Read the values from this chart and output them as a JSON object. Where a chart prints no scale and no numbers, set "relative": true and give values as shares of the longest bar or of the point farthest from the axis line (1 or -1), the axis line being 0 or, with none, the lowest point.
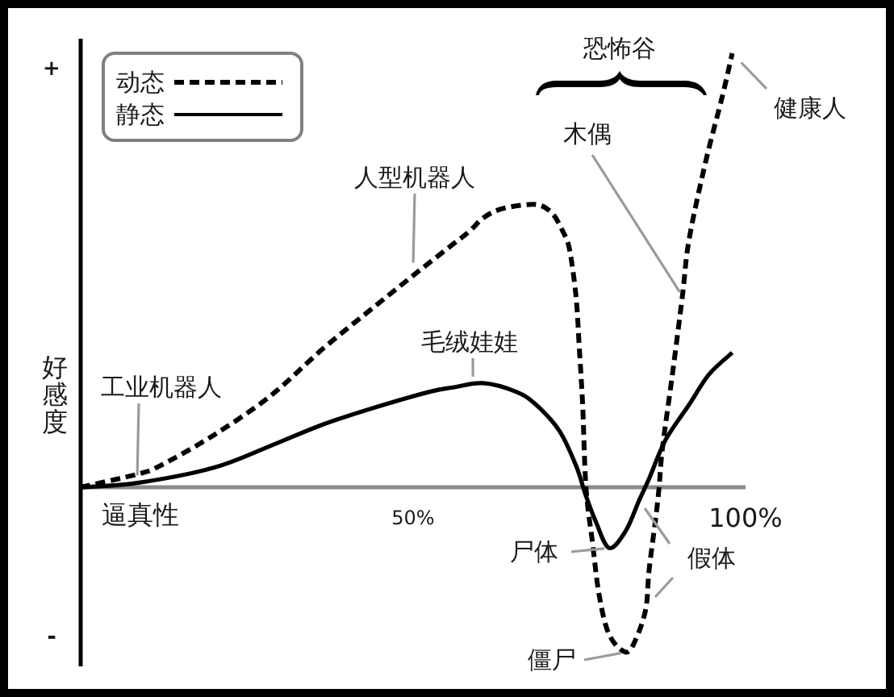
{
  "chart_data": {
    "type": "line",
    "relative": true,
    "xlabel": "逼真性",
    "ylabel": "好感度",
    "xlim": [
      0,
      100
    ],
    "xticks": [
      {
        "value": 50,
        "label": "50%"
      },
      {
        "value": 100,
        "label": "100%"
      }
    ],
    "legend": "top left",
    "series": [
      {
        "name": "动态",
        "color": "#000000",
        "line_style": "dashed",
        "x": [
          0,
          8.5,
          12,
          20,
          28.5,
          36.5,
          44.5,
          51,
          56,
          58.5,
          60.5,
          63,
          66.5,
          69,
          71,
          72.5,
          73.5,
          74.5,
          75,
          75.5,
          76,
          77,
          78,
          79.5,
          82,
          83.5,
          85,
          85.5,
          86.5,
          87,
          87.5,
          89,
          90.5,
          91.5,
          94,
          96.5,
          98
        ],
        "values": [
          0,
          0.03,
          0.05,
          0.12,
          0.21,
          0.32,
          0.42,
          0.5,
          0.56,
          0.59,
          0.62,
          0.64,
          0.65,
          0.65,
          0.63,
          0.59,
          0.55,
          0.44,
          0.32,
          0.19,
          0,
          -0.13,
          -0.25,
          -0.34,
          -0.38,
          -0.35,
          -0.28,
          -0.19,
          -0.07,
          0,
          0.09,
          0.26,
          0.44,
          0.57,
          0.75,
          0.9,
          1
        ]
      },
      {
        "name": "静态",
        "color": "#000000",
        "line_style": "solid",
        "x": [
          0,
          8.5,
          20,
          28.5,
          36.5,
          44.5,
          52.5,
          56,
          60.5,
          65.5,
          68.5,
          72,
          74.5,
          76,
          77.5,
          79.5,
          82,
          84,
          85.5,
          88,
          91.5,
          94.5,
          98
        ],
        "values": [
          0,
          0.01,
          0.045,
          0.095,
          0.145,
          0.185,
          0.22,
          0.23,
          0.24,
          0.22,
          0.19,
          0.13,
          0.05,
          -0.02,
          -0.08,
          -0.14,
          -0.1,
          -0.03,
          0.02,
          0.11,
          0.19,
          0.26,
          0.31
        ]
      }
    ],
    "annotations": [
      "+",
      "-",
      {
        "text": "工业机器人",
        "x": 8.5,
        "y": 0.02
      },
      {
        "text": "人型机器人",
        "x": 50,
        "y": 0.51
      },
      {
        "text": "毛绒娃娃",
        "x": 59,
        "y": 0.24
      },
      "恐怖谷",
      {
        "text": "木偶",
        "x": 90.5,
        "y": 0.44
      },
      {
        "text": "健康人",
        "x": 98,
        "y": 1
      },
      {
        "text": "尸体",
        "x": 79.5,
        "y": -0.14
      },
      {
        "text": "假体",
        "x": 84,
        "y": -0.03
      },
      {
        "text": "僵尸",
        "x": 82,
        "y": -0.38
      }
    ]
  }
}
